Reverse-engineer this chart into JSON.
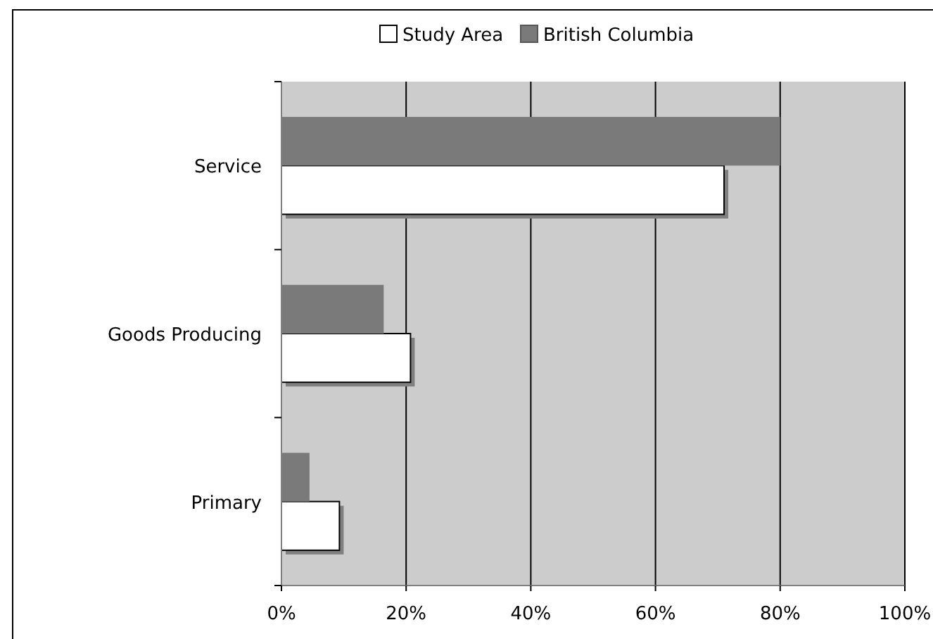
{
  "chart_data": {
    "type": "bar",
    "orientation": "horizontal",
    "categories": [
      "Service",
      "Goods Producing",
      "Primary"
    ],
    "series": [
      {
        "name": "Study Area",
        "color": "#ffffff",
        "values": [
          71,
          20.7,
          9.3
        ]
      },
      {
        "name": "British Columbia",
        "color": "#7a7a7a",
        "values": [
          80,
          16.4,
          4.5
        ]
      }
    ],
    "xlim": [
      0,
      100
    ],
    "xticks": [
      {
        "value": 0,
        "label": "0%"
      },
      {
        "value": 20,
        "label": "20%"
      },
      {
        "value": 40,
        "label": "40%"
      },
      {
        "value": 60,
        "label": "60%"
      },
      {
        "value": 80,
        "label": "80%"
      },
      {
        "value": 100,
        "label": "100%"
      }
    ],
    "grid": "x",
    "legend": "top"
  }
}
